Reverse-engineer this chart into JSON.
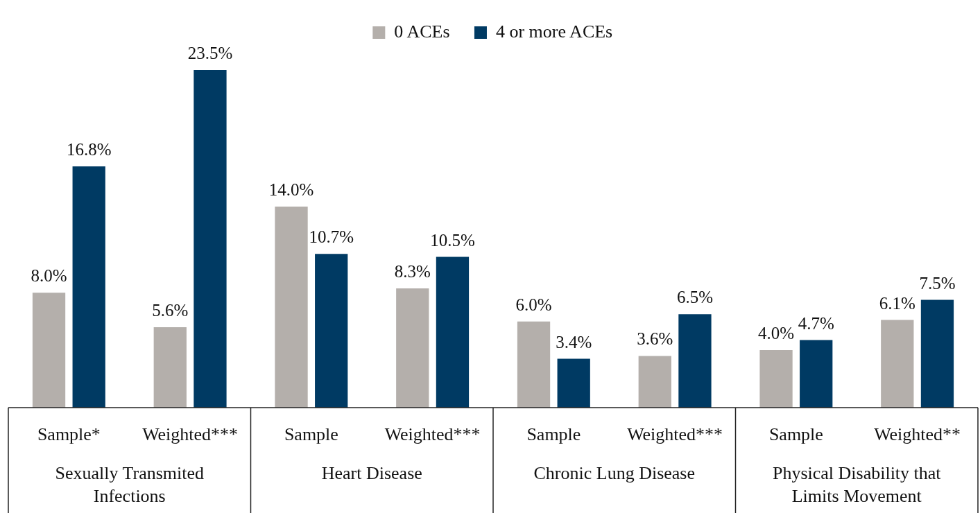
{
  "chart_data": {
    "type": "bar",
    "categories": [
      "Sample*",
      "Weighted***",
      "Sample",
      "Weighted***",
      "Sample",
      "Weighted***",
      "Sample",
      "Weighted**"
    ],
    "series": [
      {
        "name": "0 ACEs",
        "color": "#b4afab",
        "values": [
          8.0,
          5.6,
          14.0,
          8.3,
          6.0,
          3.6,
          4.0,
          6.1
        ],
        "value_labels": [
          "8.0%",
          "5.6%",
          "14.0%",
          "8.3%",
          "6.0%",
          "3.6%",
          "4.0%",
          "6.1%"
        ]
      },
      {
        "name": "4 or more ACEs",
        "color": "#003a63",
        "values": [
          16.8,
          23.5,
          10.7,
          10.5,
          3.4,
          6.5,
          4.7,
          7.5
        ],
        "value_labels": [
          "16.8%",
          "23.5%",
          "10.7%",
          "10.5%",
          "3.4%",
          "6.5%",
          "4.7%",
          "7.5%"
        ]
      }
    ],
    "annotations": [
      "Sexually Transmited Infections",
      "Heart Disease",
      "Chronic Lung Disease",
      "Physical Disability that Limits Movement"
    ],
    "legend": "top"
  }
}
